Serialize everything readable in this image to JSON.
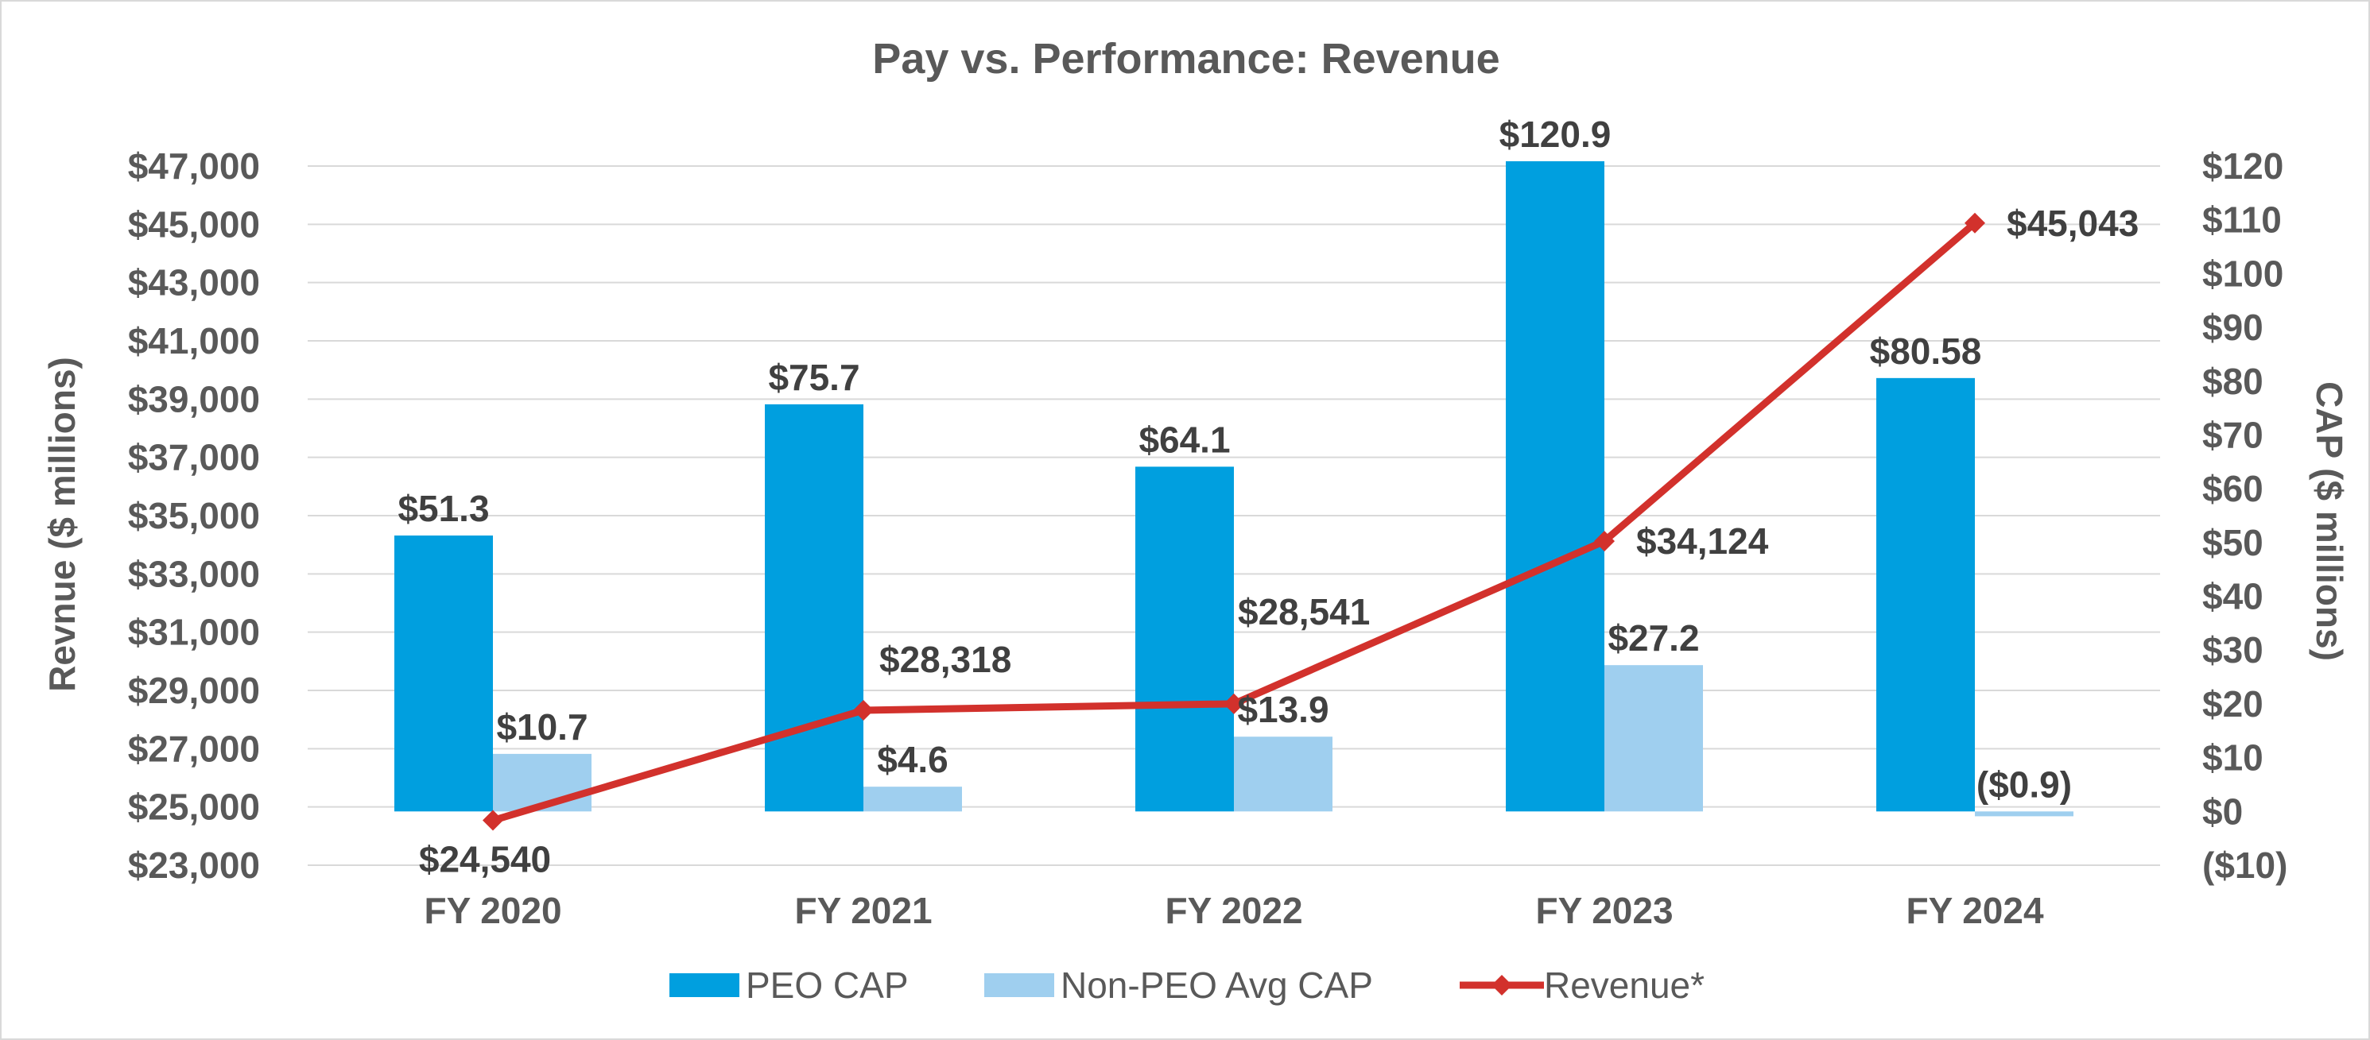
{
  "chart_data": {
    "type": "bar",
    "title": "Pay vs. Performance: Revenue",
    "categories": [
      "FY 2020",
      "FY 2021",
      "FY 2022",
      "FY 2023",
      "FY 2024"
    ],
    "series": [
      {
        "name": "PEO CAP",
        "type": "bar",
        "axis": "right",
        "color": "#009fdf",
        "values": [
          51.3,
          75.7,
          64.1,
          120.9,
          80.58
        ],
        "labels": [
          "$51.3",
          "$75.7",
          "$64.1",
          "$120.9",
          "$80.58"
        ]
      },
      {
        "name": "Non-PEO Avg CAP",
        "type": "bar",
        "axis": "right",
        "color": "#9fcfef",
        "values": [
          10.7,
          4.6,
          13.9,
          27.2,
          -0.9
        ],
        "labels": [
          "$10.7",
          "$4.6",
          "$13.9",
          "$27.2",
          "($0.9)"
        ]
      },
      {
        "name": "Revenue*",
        "type": "line",
        "axis": "left",
        "color": "#d2312c",
        "values": [
          24540,
          28318,
          28541,
          34124,
          45043
        ],
        "labels": [
          "$24,540",
          "$28,318",
          "$28,541",
          "$34,124",
          "$45,043"
        ]
      }
    ],
    "y_left": {
      "label": "Revnue ($ millions)",
      "min": 23000,
      "max": 47000,
      "ticks": [
        23000,
        25000,
        27000,
        29000,
        31000,
        33000,
        35000,
        37000,
        39000,
        41000,
        43000,
        45000,
        47000
      ],
      "tick_labels": [
        "$23,000",
        "$25,000",
        "$27,000",
        "$29,000",
        "$31,000",
        "$33,000",
        "$35,000",
        "$37,000",
        "$39,000",
        "$41,000",
        "$43,000",
        "$45,000",
        "$47,000"
      ]
    },
    "y_right": {
      "label": "CAP ($ millions)",
      "min": -10,
      "max": 120,
      "ticks": [
        -10,
        0,
        10,
        20,
        30,
        40,
        50,
        60,
        70,
        80,
        90,
        100,
        110,
        120
      ],
      "tick_labels": [
        "($10)",
        "$0",
        "$10",
        "$20",
        "$30",
        "$40",
        "$50",
        "$60",
        "$70",
        "$80",
        "$90",
        "$100",
        "$110",
        "$120"
      ]
    },
    "grid": true,
    "legend_position": "bottom"
  }
}
